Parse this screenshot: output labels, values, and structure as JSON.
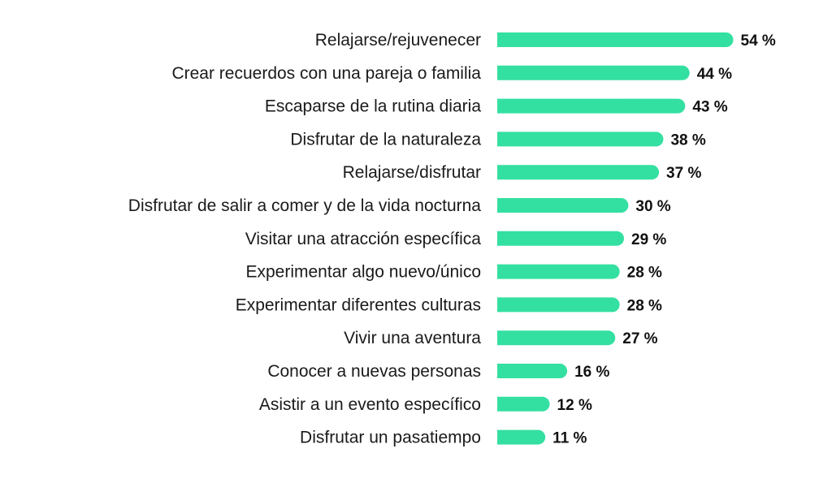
{
  "chart_data": {
    "type": "bar",
    "orientation": "horizontal",
    "categories": [
      "Relajarse/rejuvenecer",
      "Crear recuerdos con una pareja o familia",
      "Escaparse de la rutina diaria",
      "Disfrutar de la naturaleza",
      "Relajarse/disfrutar",
      "Disfrutar de salir a comer y de la vida nocturna",
      "Visitar una atracción específica",
      "Experimentar algo nuevo/único",
      "Experimentar diferentes culturas",
      "Vivir una aventura",
      "Conocer a nuevas personas",
      "Asistir a un evento específico",
      "Disfrutar un pasatiempo"
    ],
    "values": [
      54,
      44,
      43,
      38,
      37,
      30,
      29,
      28,
      28,
      27,
      16,
      12,
      11
    ],
    "value_labels": [
      "54 %",
      "44 %",
      "43 %",
      "38 %",
      "37 %",
      "30 %",
      "29 %",
      "28 %",
      "28 %",
      "27 %",
      "16 %",
      "12 %",
      "11 %"
    ],
    "title": "",
    "xlabel": "",
    "ylabel": "",
    "grid": false,
    "bar_color": "#34e0a1"
  }
}
